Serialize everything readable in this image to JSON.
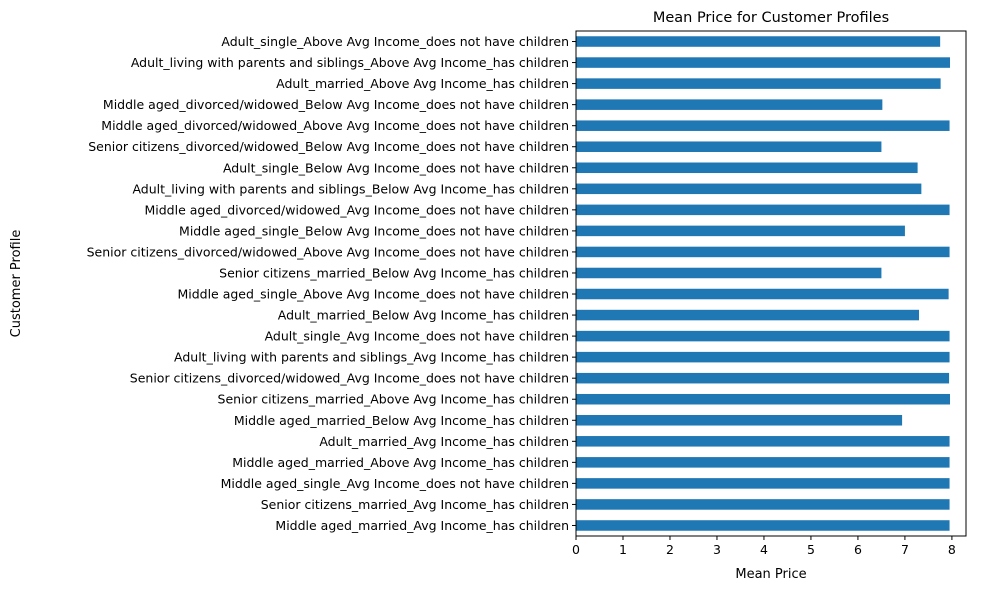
{
  "chart_data": {
    "type": "bar",
    "orientation": "horizontal",
    "title": "Mean Price for Customer Profiles",
    "xlabel": "Mean Price",
    "ylabel": "Customer Profile",
    "xlim": [
      0,
      8.3
    ],
    "xticks": [
      "0",
      "1",
      "2",
      "3",
      "4",
      "5",
      "6",
      "7",
      "8"
    ],
    "grid": false,
    "bar_color": "#1f77b4",
    "categories": [
      "Adult_single_Above Avg Income_does not have children",
      "Adult_living with parents and siblings_Above Avg Income_has children",
      "Adult_married_Above Avg Income_has children",
      "Middle aged_divorced/widowed_Below Avg Income_does not have children",
      "Middle aged_divorced/widowed_Above Avg Income_does not have children",
      "Senior citizens_divorced/widowed_Below Avg Income_does not have children",
      "Adult_single_Below Avg Income_does not have children",
      "Adult_living with parents and siblings_Below Avg Income_has children",
      "Middle aged_divorced/widowed_Avg Income_does not have children",
      "Middle aged_single_Below Avg Income_does not have children",
      "Senior citizens_divorced/widowed_Above Avg Income_does not have children",
      "Senior citizens_married_Below Avg Income_has children",
      "Middle aged_single_Above Avg Income_does not have children",
      "Adult_married_Below Avg Income_has children",
      "Adult_single_Avg Income_does not have children",
      "Adult_living with parents and siblings_Avg Income_has children",
      "Senior citizens_divorced/widowed_Avg Income_does not have children",
      "Senior citizens_married_Above Avg Income_has children",
      "Middle aged_married_Below Avg Income_has children",
      "Adult_married_Avg Income_has children",
      "Middle aged_married_Above Avg Income_has children",
      "Middle aged_single_Avg Income_does not have children",
      "Senior citizens_married_Avg Income_has children",
      "Middle aged_married_Avg Income_has children"
    ],
    "values": [
      7.75,
      7.96,
      7.76,
      6.52,
      7.95,
      6.5,
      7.27,
      7.35,
      7.95,
      7.0,
      7.95,
      6.5,
      7.93,
      7.3,
      7.95,
      7.95,
      7.94,
      7.96,
      6.94,
      7.95,
      7.95,
      7.95,
      7.95,
      7.95
    ]
  }
}
